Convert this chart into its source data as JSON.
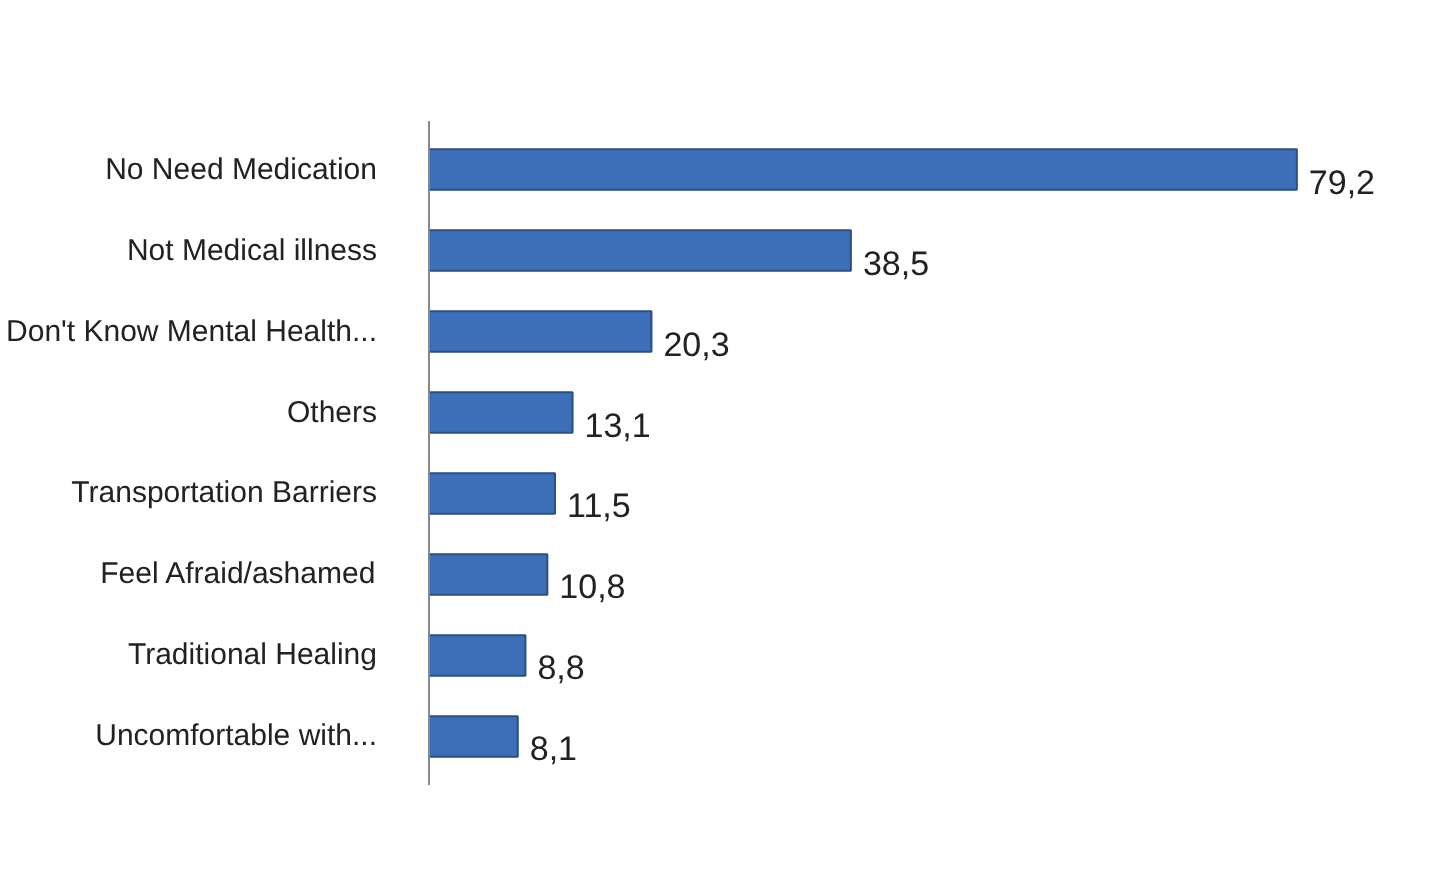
{
  "chart_data": {
    "type": "bar",
    "orientation": "horizontal",
    "categories": [
      "No Need Medication",
      "Not Medical illness",
      "Don't Know Mental Health...",
      "Others",
      "Transportation Barriers",
      "Feel Afraid/ashamed",
      "Traditional Healing",
      "Uncomfortable with..."
    ],
    "values": [
      79.2,
      38.5,
      20.3,
      13.1,
      11.5,
      10.8,
      8.8,
      8.1
    ],
    "value_labels": [
      "79,2",
      "38,5",
      "20,3",
      "13,1",
      "11,5",
      "10,8",
      "8,8",
      "8,1"
    ],
    "color": "#3c6fb8"
  }
}
